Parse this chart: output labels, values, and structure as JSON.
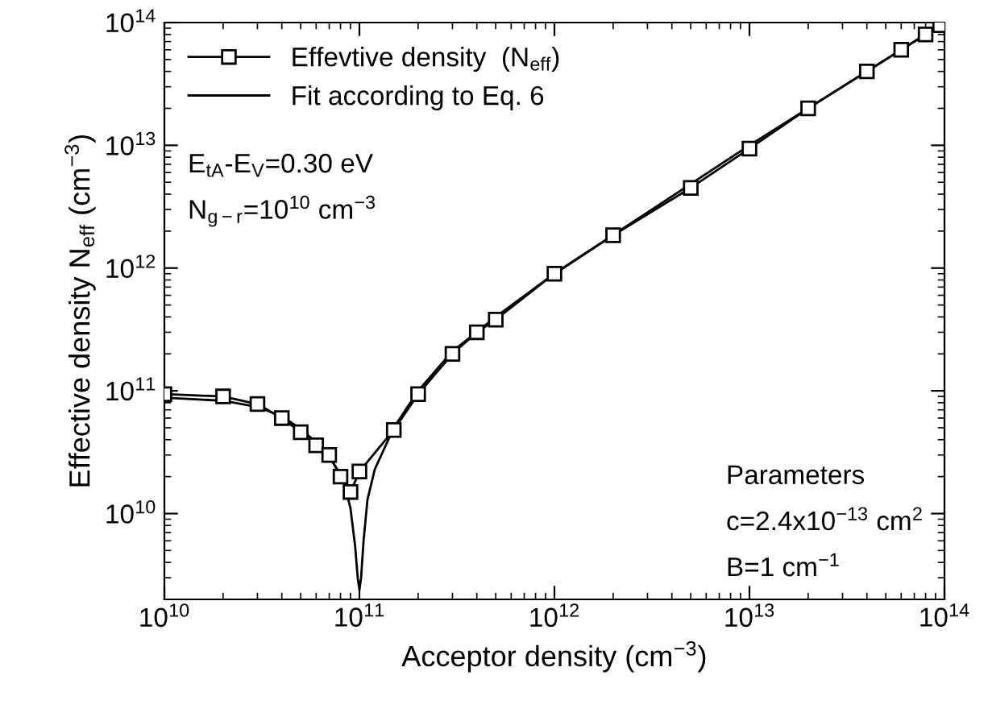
{
  "chart_data": {
    "type": "line",
    "xlabel": "Acceptor density (cm$^{−3}$)",
    "ylabel": "Effective density N$_{eff}$ (cm$^{−3}$)",
    "log": "xy",
    "xlim": [
      10000000000.0,
      100000000000000.0
    ],
    "ylim": [
      2000000000.0,
      100000000000000.0
    ],
    "xticks": [
      {
        "value": 10000000000.0,
        "label": "10$^{10}$"
      },
      {
        "value": 100000000000.0,
        "label": "10$^{11}$"
      },
      {
        "value": 1000000000000.0,
        "label": "10$^{12}$"
      },
      {
        "value": 10000000000000.0,
        "label": "10$^{13}$"
      },
      {
        "value": 100000000000000.0,
        "label": "10$^{14}$"
      }
    ],
    "yticks": [
      {
        "value": 10000000000.0,
        "label": "10$^{10}$"
      },
      {
        "value": 100000000000.0,
        "label": "10$^{11}$"
      },
      {
        "value": 1000000000000.0,
        "label": "10$^{12}$"
      },
      {
        "value": 10000000000000.0,
        "label": "10$^{13}$"
      },
      {
        "value": 100000000000000.0,
        "label": "10$^{14}$"
      }
    ],
    "grid": false,
    "legend": "top left",
    "series": [
      {
        "name": "Effevtive density  (N$_{eff}$)",
        "color": "#000000",
        "marker": "square",
        "line_style": "solid",
        "x": [
          10000000000.0,
          20000000000.0,
          30000000000.0,
          40000000000.0,
          50000000000.0,
          60000000000.0,
          70000000000.0,
          80000000000.0,
          90000000000.0,
          100000000000.0,
          150000000000.0,
          200000000000.0,
          300000000000.0,
          400000000000.0,
          500000000000.0,
          1000000000000.0,
          2000000000000.0,
          5000000000000.0,
          10000000000000.0,
          20000000000000.0,
          40000000000000.0,
          60000000000000.0,
          80000000000000.0,
          95000000000000.0
        ],
        "values": [
          94000000000.0,
          90000000000.0,
          78000000000.0,
          60000000000.0,
          46000000000.0,
          36000000000.0,
          30000000000.0,
          20000000000.0,
          15000000000.0,
          22000000000.0,
          48000000000.0,
          94000000000.0,
          200000000000.0,
          300000000000.0,
          380000000000.0,
          900000000000.0,
          1850000000000.0,
          4500000000000.0,
          9400000000000.0,
          20000000000000.0,
          40000000000000.0,
          60000000000000.0,
          80000000000000.0,
          95000000000000.0
        ]
      },
      {
        "name": "Fit according to Eq. 6",
        "color": "#000000",
        "marker": "none",
        "line_style": "solid",
        "x": [
          10000000000.0,
          20000000000.0,
          30000000000.0,
          40000000000.0,
          50000000000.0,
          60000000000.0,
          70000000000.0,
          80000000000.0,
          85000000000.0,
          90000000000.0,
          95000000000.0,
          98000000000.0,
          100000000000.0,
          102000000000.0,
          105000000000.0,
          110000000000.0,
          120000000000.0,
          150000000000.0,
          200000000000.0,
          300000000000.0,
          500000000000.0,
          1000000000000.0,
          10000000000000.0,
          100000000000000.0
        ],
        "values": [
          88000000000.0,
          83000000000.0,
          74000000000.0,
          62000000000.0,
          49000000000.0,
          38000000000.0,
          29000000000.0,
          21000000000.0,
          16000000000.0,
          11000000000.0,
          5500000000.0,
          3000000000.0,
          2400000000.0,
          3000000000.0,
          6000000000.0,
          13000000000.0,
          23000000000.0,
          50000000000.0,
          100000000000.0,
          210000000000.0,
          400000000000.0,
          900000000000.0,
          10000000000000.0,
          100000000000000.0
        ]
      }
    ],
    "annotations": [
      "E$_{tA}$-E$_{V}$=0.30 eV",
      "N$_{g−r}$=10$^{10}$ cm$^{−3}$",
      "Parameters",
      "c=2.4x10$^{−13}$ cm$^{2}$",
      "B=1 cm$^{−1}$"
    ]
  }
}
